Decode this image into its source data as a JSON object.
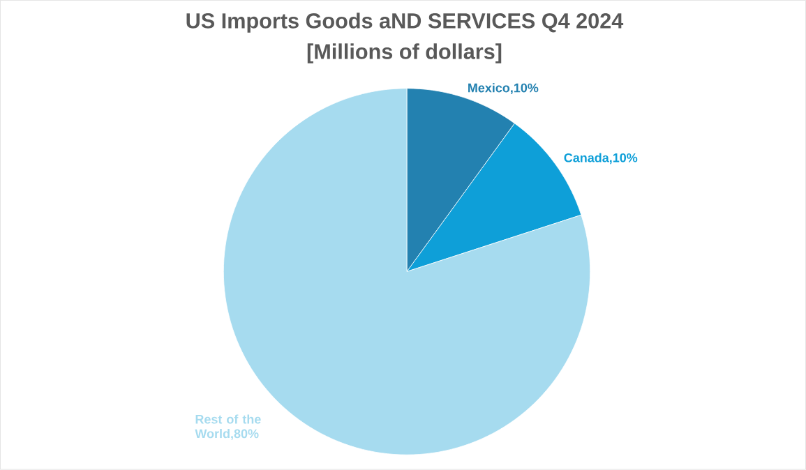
{
  "chart_data": {
    "type": "pie",
    "title": "US Imports Goods aND SERVICES Q4 2024",
    "subtitle": "[Millions of dollars]",
    "categories": [
      "Mexico",
      "Canada",
      "Rest of the World"
    ],
    "values": [
      10,
      10,
      80
    ],
    "colors": [
      "#2381b0",
      "#0e9fd8",
      "#a6dbef"
    ],
    "value_labels": [
      ",10%",
      ",10%",
      ",80%"
    ]
  }
}
